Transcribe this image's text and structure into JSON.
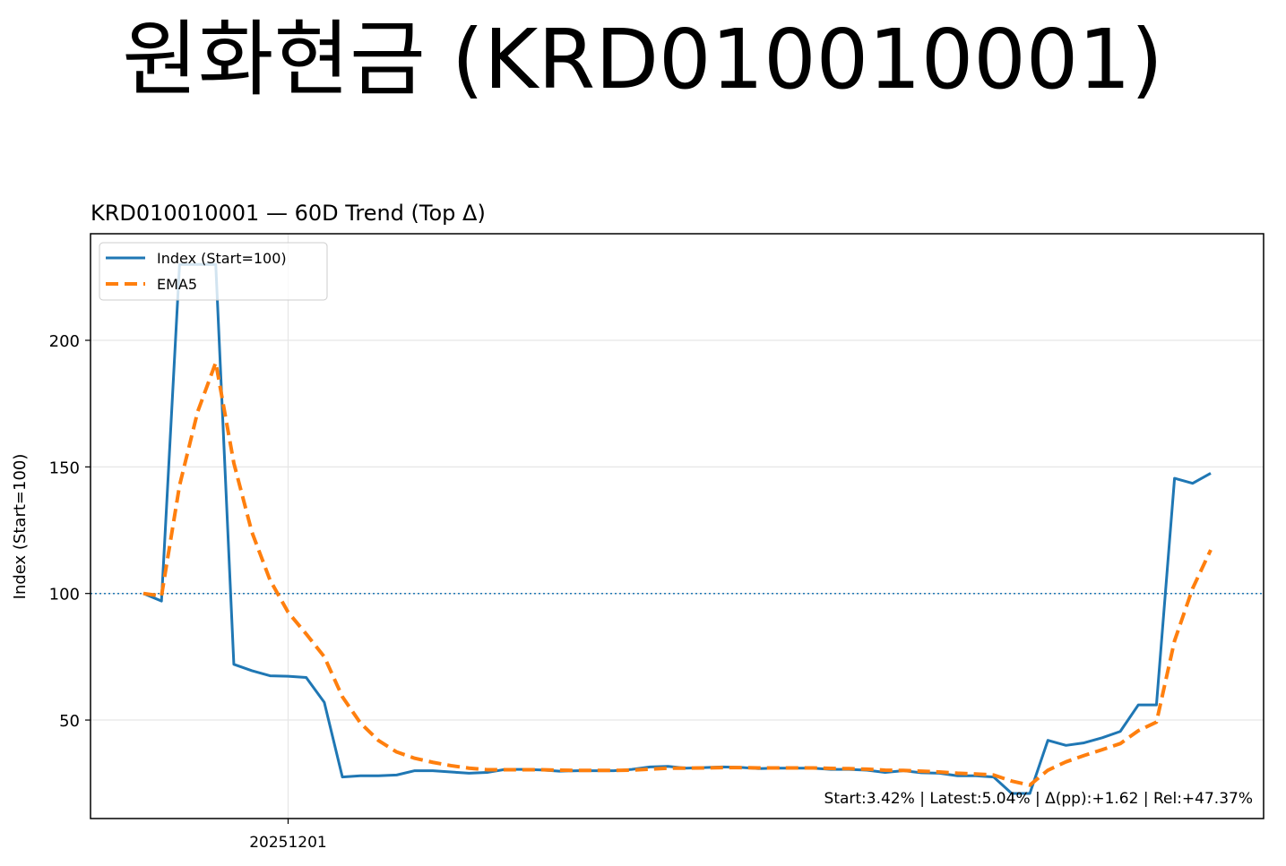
{
  "page_title": "원화현금 (KRD010010001)",
  "chart_data": {
    "type": "line",
    "title": "KRD010010001 — 60D Trend (Top Δ)",
    "y_label": "Index (Start=100)",
    "annotation": "Start:3.42% | Latest:5.04% | Δ(pp):+1.62 | Rel:+47.37%",
    "reference_line": 100,
    "categories": [
      null,
      null,
      null,
      null,
      null,
      null,
      null,
      null,
      "20251201",
      null,
      null,
      null,
      null,
      null,
      null,
      null,
      null,
      null,
      null,
      null,
      null,
      null,
      null,
      null,
      null,
      null,
      null,
      null,
      null,
      null,
      null,
      null,
      null,
      null,
      null,
      null,
      null,
      null,
      null,
      null,
      null,
      null,
      null,
      null,
      null,
      null,
      null,
      null,
      null,
      null,
      null,
      null,
      null,
      null,
      null,
      null,
      null,
      null,
      null,
      null
    ],
    "series": [
      {
        "name": "Index (Start=100)",
        "color": "#1f77b4",
        "dash": false,
        "values": [
          100,
          97,
          230,
          230,
          230,
          72,
          69.5,
          67.5,
          67.3,
          66.8,
          57,
          27.5,
          28,
          28,
          28.3,
          30,
          30,
          29.5,
          29,
          29.3,
          30.5,
          30.5,
          30.3,
          29.8,
          30,
          30,
          30,
          30.5,
          31.5,
          31.7,
          31,
          31.2,
          31.5,
          31.3,
          30.8,
          31,
          31,
          31,
          30.5,
          30.5,
          30.2,
          29.3,
          30,
          29.2,
          29,
          28,
          28,
          27.5,
          21,
          21,
          42,
          40,
          41,
          43,
          45.5,
          56,
          56,
          145.5,
          143.5,
          147.5
        ]
      },
      {
        "name": "EMA5",
        "color": "#ff7f0e",
        "dash": true,
        "values": [
          100,
          99,
          142.7,
          171.8,
          191.2,
          151.5,
          124.2,
          105.3,
          92.6,
          84,
          75,
          59.2,
          48.8,
          41.9,
          37.4,
          34.9,
          33.3,
          32,
          31,
          30.4,
          30.4,
          30.4,
          30.4,
          30.2,
          30.1,
          30.1,
          30.1,
          30.2,
          30.6,
          31,
          31,
          31.1,
          31.2,
          31.2,
          31.1,
          31.1,
          31.1,
          31.1,
          30.9,
          30.8,
          30.6,
          30.2,
          30.1,
          29.8,
          29.5,
          29,
          28.7,
          28.3,
          25.9,
          24.3,
          30.2,
          33.5,
          36,
          38.3,
          40.7,
          45.8,
          49.2,
          81.3,
          102,
          117.2
        ]
      }
    ],
    "ylim": [
      11.1,
      242.1
    ],
    "yticks": [
      50,
      100,
      150,
      200
    ],
    "grid": true,
    "legend": "upper left"
  }
}
